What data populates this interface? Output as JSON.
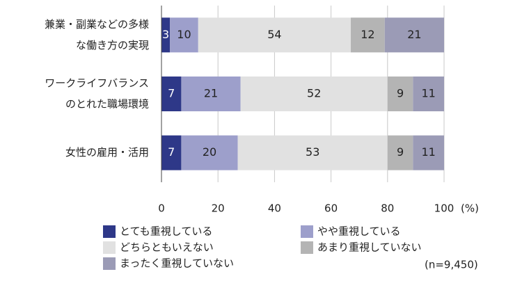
{
  "chart_data": {
    "type": "stacked-barh",
    "categories": [
      [
        "兼業・副業などの多様",
        "な働き方の実現"
      ],
      [
        "ワークライフバランス",
        "のとれた職場環境"
      ],
      [
        "女性の雇用・活用"
      ]
    ],
    "series": [
      {
        "name": "とても重視している",
        "color": "#2e3888",
        "values": [
          3,
          7,
          7
        ]
      },
      {
        "name": "やや重視している",
        "color": "#9d9fcb",
        "values": [
          10,
          21,
          20
        ]
      },
      {
        "name": "どちらともいえない",
        "color": "#e1e1e1",
        "values": [
          54,
          52,
          53
        ]
      },
      {
        "name": "あまり重視していない",
        "color": "#b4b4b4",
        "values": [
          12,
          9,
          9
        ]
      },
      {
        "name": "まったく重視していない",
        "color": "#9b9bb6",
        "values": [
          21,
          11,
          11
        ]
      }
    ],
    "xlim": [
      0,
      100
    ],
    "xticks": [
      0,
      20,
      40,
      60,
      80,
      100
    ],
    "x_label": "(%)",
    "grid": true,
    "note": "(n=9,450)"
  }
}
